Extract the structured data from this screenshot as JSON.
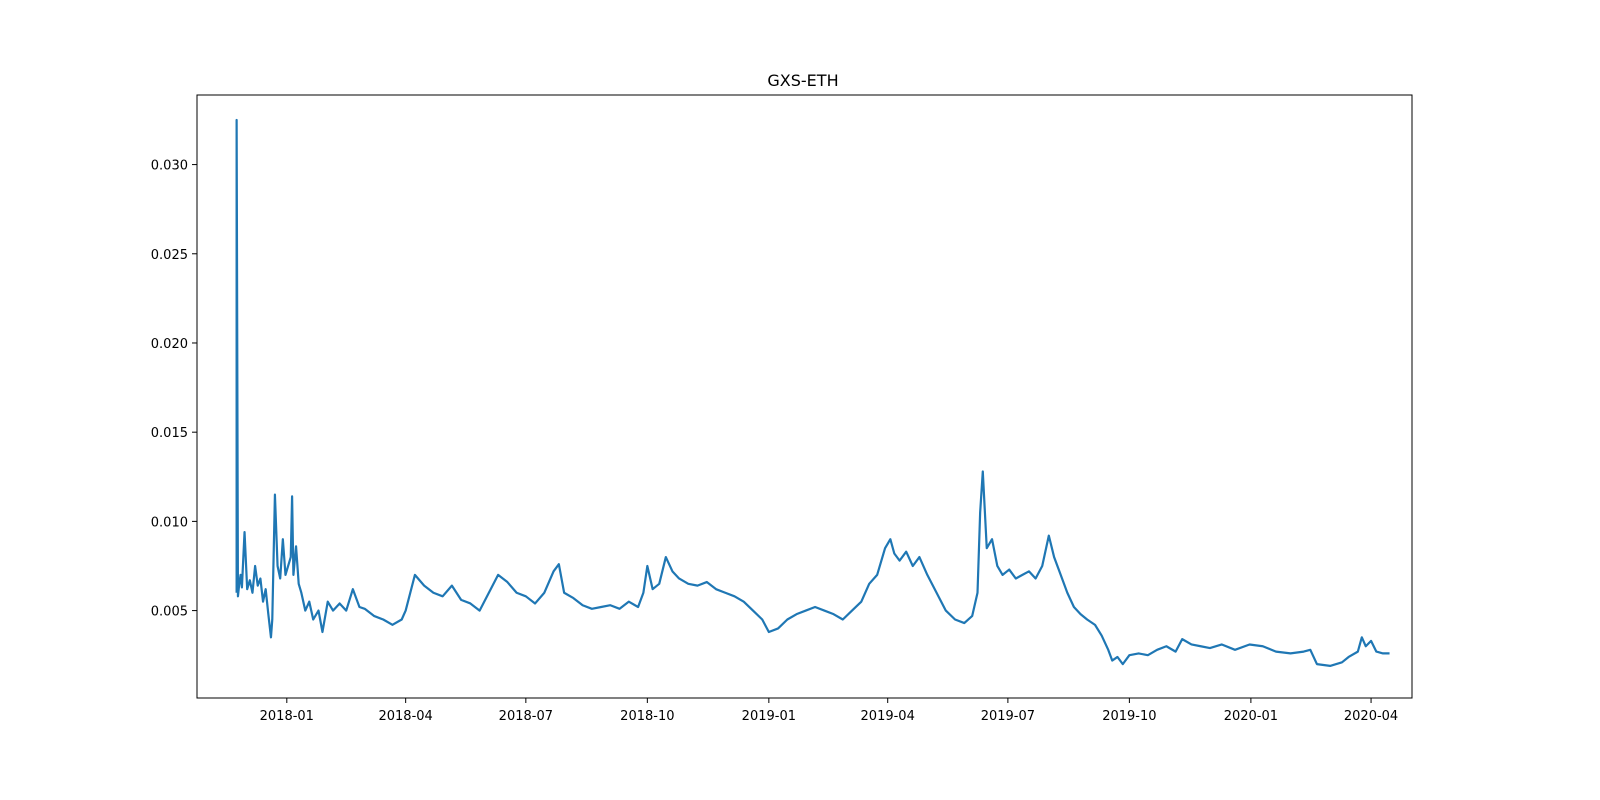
{
  "chart_data": {
    "type": "line",
    "title": "GXS-ETH",
    "xlabel": "",
    "ylabel": "",
    "x_axis_type": "date",
    "xlim": [
      "2017-10-25",
      "2020-05-02"
    ],
    "ylim": [
      0.0001,
      0.0339
    ],
    "grid": false,
    "legend": "none",
    "line_color": "#1f77b4",
    "x_ticks": [
      "2018-01",
      "2018-04",
      "2018-07",
      "2018-10",
      "2019-01",
      "2019-04",
      "2019-07",
      "2019-10",
      "2020-01",
      "2020-04"
    ],
    "y_ticks": [
      "0.005",
      "0.010",
      "0.015",
      "0.020",
      "0.025",
      "0.030"
    ],
    "series": [
      {
        "x": [
          "2017-11-24",
          "2017-11-24",
          "2017-11-25",
          "2017-11-26",
          "2017-11-27",
          "2017-11-28",
          "2017-11-30",
          "2017-12-02",
          "2017-12-04",
          "2017-12-06",
          "2017-12-08",
          "2017-12-10",
          "2017-12-12",
          "2017-12-14",
          "2017-12-16",
          "2017-12-18",
          "2017-12-20",
          "2017-12-21",
          "2017-12-22",
          "2017-12-23",
          "2017-12-25",
          "2017-12-27",
          "2017-12-29",
          "2017-12-31",
          "2018-01-02",
          "2018-01-04",
          "2018-01-05",
          "2018-01-06",
          "2018-01-08",
          "2018-01-10",
          "2018-01-12",
          "2018-01-15",
          "2018-01-18",
          "2018-01-21",
          "2018-01-25",
          "2018-01-28",
          "2018-02-01",
          "2018-02-05",
          "2018-02-10",
          "2018-02-15",
          "2018-02-20",
          "2018-02-25",
          "2018-03-01",
          "2018-03-08",
          "2018-03-15",
          "2018-03-22",
          "2018-03-29",
          "2018-04-01",
          "2018-04-08",
          "2018-04-15",
          "2018-04-22",
          "2018-04-29",
          "2018-05-06",
          "2018-05-13",
          "2018-05-20",
          "2018-05-27",
          "2018-06-03",
          "2018-06-10",
          "2018-06-17",
          "2018-06-24",
          "2018-07-01",
          "2018-07-08",
          "2018-07-15",
          "2018-07-22",
          "2018-07-26",
          "2018-07-30",
          "2018-08-06",
          "2018-08-13",
          "2018-08-20",
          "2018-08-27",
          "2018-09-03",
          "2018-09-10",
          "2018-09-17",
          "2018-09-24",
          "2018-09-28",
          "2018-10-01",
          "2018-10-05",
          "2018-10-10",
          "2018-10-15",
          "2018-10-20",
          "2018-10-25",
          "2018-11-01",
          "2018-11-08",
          "2018-11-15",
          "2018-11-22",
          "2018-11-29",
          "2018-12-06",
          "2018-12-13",
          "2018-12-20",
          "2018-12-27",
          "2019-01-01",
          "2019-01-08",
          "2019-01-15",
          "2019-01-22",
          "2019-01-29",
          "2019-02-05",
          "2019-02-12",
          "2019-02-19",
          "2019-02-26",
          "2019-03-05",
          "2019-03-12",
          "2019-03-18",
          "2019-03-24",
          "2019-03-30",
          "2019-04-03",
          "2019-04-06",
          "2019-04-10",
          "2019-04-15",
          "2019-04-20",
          "2019-04-25",
          "2019-05-01",
          "2019-05-08",
          "2019-05-15",
          "2019-05-22",
          "2019-05-29",
          "2019-06-04",
          "2019-06-08",
          "2019-06-10",
          "2019-06-12",
          "2019-06-15",
          "2019-06-19",
          "2019-06-23",
          "2019-06-27",
          "2019-07-02",
          "2019-07-07",
          "2019-07-12",
          "2019-07-17",
          "2019-07-22",
          "2019-07-27",
          "2019-08-01",
          "2019-08-05",
          "2019-08-10",
          "2019-08-15",
          "2019-08-20",
          "2019-08-25",
          "2019-08-30",
          "2019-09-05",
          "2019-09-10",
          "2019-09-15",
          "2019-09-18",
          "2019-09-22",
          "2019-09-26",
          "2019-10-01",
          "2019-10-08",
          "2019-10-15",
          "2019-10-22",
          "2019-10-29",
          "2019-11-05",
          "2019-11-10",
          "2019-11-17",
          "2019-11-24",
          "2019-12-01",
          "2019-12-10",
          "2019-12-20",
          "2019-12-31",
          "2020-01-10",
          "2020-01-20",
          "2020-01-31",
          "2020-02-10",
          "2020-02-15",
          "2020-02-20",
          "2020-03-01",
          "2020-03-10",
          "2020-03-15",
          "2020-03-22",
          "2020-03-25",
          "2020-03-28",
          "2020-04-01",
          "2020-04-05",
          "2020-04-10",
          "2020-04-15"
        ],
        "y": [
          0.006,
          0.0325,
          0.0058,
          0.0065,
          0.007,
          0.0063,
          0.0094,
          0.0062,
          0.0067,
          0.006,
          0.0075,
          0.0064,
          0.0068,
          0.0055,
          0.0062,
          0.0048,
          0.0035,
          0.0045,
          0.008,
          0.0115,
          0.0075,
          0.0068,
          0.009,
          0.007,
          0.0075,
          0.008,
          0.0114,
          0.007,
          0.0086,
          0.0065,
          0.006,
          0.005,
          0.0055,
          0.0045,
          0.005,
          0.0038,
          0.0055,
          0.005,
          0.0054,
          0.005,
          0.0062,
          0.0052,
          0.0051,
          0.0047,
          0.0045,
          0.0042,
          0.0045,
          0.005,
          0.007,
          0.0064,
          0.006,
          0.0058,
          0.0064,
          0.0056,
          0.0054,
          0.005,
          0.006,
          0.007,
          0.0066,
          0.006,
          0.0058,
          0.0054,
          0.006,
          0.0072,
          0.0076,
          0.006,
          0.0057,
          0.0053,
          0.0051,
          0.0052,
          0.0053,
          0.0051,
          0.0055,
          0.0052,
          0.006,
          0.0075,
          0.0062,
          0.0065,
          0.008,
          0.0072,
          0.0068,
          0.0065,
          0.0064,
          0.0066,
          0.0062,
          0.006,
          0.0058,
          0.0055,
          0.005,
          0.0045,
          0.0038,
          0.004,
          0.0045,
          0.0048,
          0.005,
          0.0052,
          0.005,
          0.0048,
          0.0045,
          0.005,
          0.0055,
          0.0065,
          0.007,
          0.0085,
          0.009,
          0.0082,
          0.0078,
          0.0083,
          0.0075,
          0.008,
          0.007,
          0.006,
          0.005,
          0.0045,
          0.0043,
          0.0047,
          0.006,
          0.0105,
          0.0128,
          0.0085,
          0.009,
          0.0075,
          0.007,
          0.0073,
          0.0068,
          0.007,
          0.0072,
          0.0068,
          0.0075,
          0.0092,
          0.008,
          0.007,
          0.006,
          0.0052,
          0.0048,
          0.0045,
          0.0042,
          0.0036,
          0.0028,
          0.0022,
          0.0024,
          0.002,
          0.0025,
          0.0026,
          0.0025,
          0.0028,
          0.003,
          0.0027,
          0.0034,
          0.0031,
          0.003,
          0.0029,
          0.0031,
          0.0028,
          0.0031,
          0.003,
          0.0027,
          0.0026,
          0.0027,
          0.0028,
          0.002,
          0.0019,
          0.0021,
          0.0024,
          0.0027,
          0.0035,
          0.003,
          0.0033,
          0.0027,
          0.0026,
          0.0026
        ]
      }
    ]
  }
}
